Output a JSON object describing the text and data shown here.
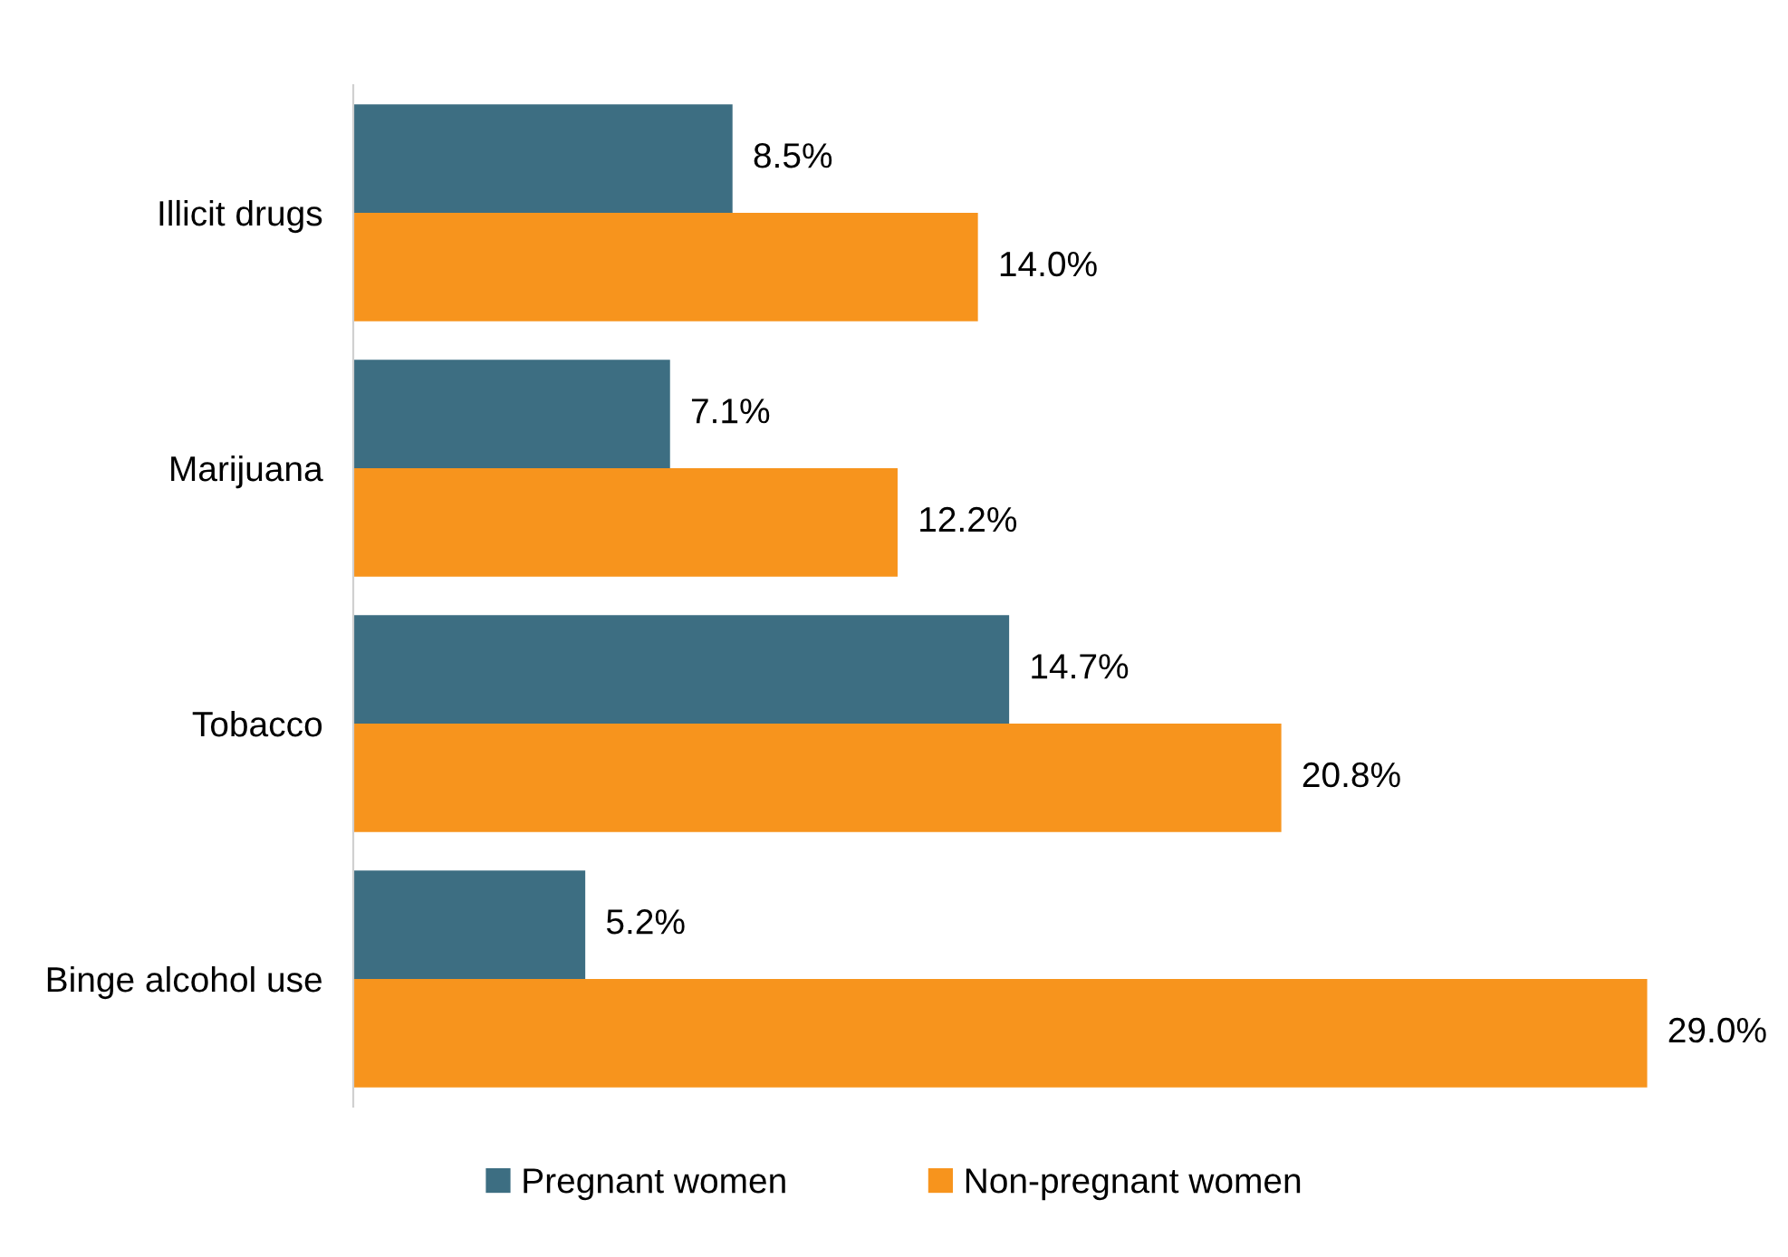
{
  "chart_data": {
    "type": "bar",
    "orientation": "horizontal",
    "categories": [
      "Illicit drugs",
      "Marijuana",
      "Tobacco",
      "Binge alcohol use"
    ],
    "series": [
      {
        "name": "Pregnant women",
        "color": "#3d6e82",
        "values": [
          8.5,
          7.1,
          14.7,
          5.2
        ],
        "value_labels": [
          "8.5%",
          "7.1%",
          "14.7%",
          "5.2%"
        ]
      },
      {
        "name": "Non-pregnant women",
        "color": "#f7941d",
        "values": [
          14.0,
          12.2,
          20.8,
          29.0
        ],
        "value_labels": [
          "14.0%",
          "12.2%",
          "20.8%",
          "29.0%"
        ]
      }
    ],
    "legend": "bottom",
    "grid": false,
    "tick_labels": "y"
  }
}
